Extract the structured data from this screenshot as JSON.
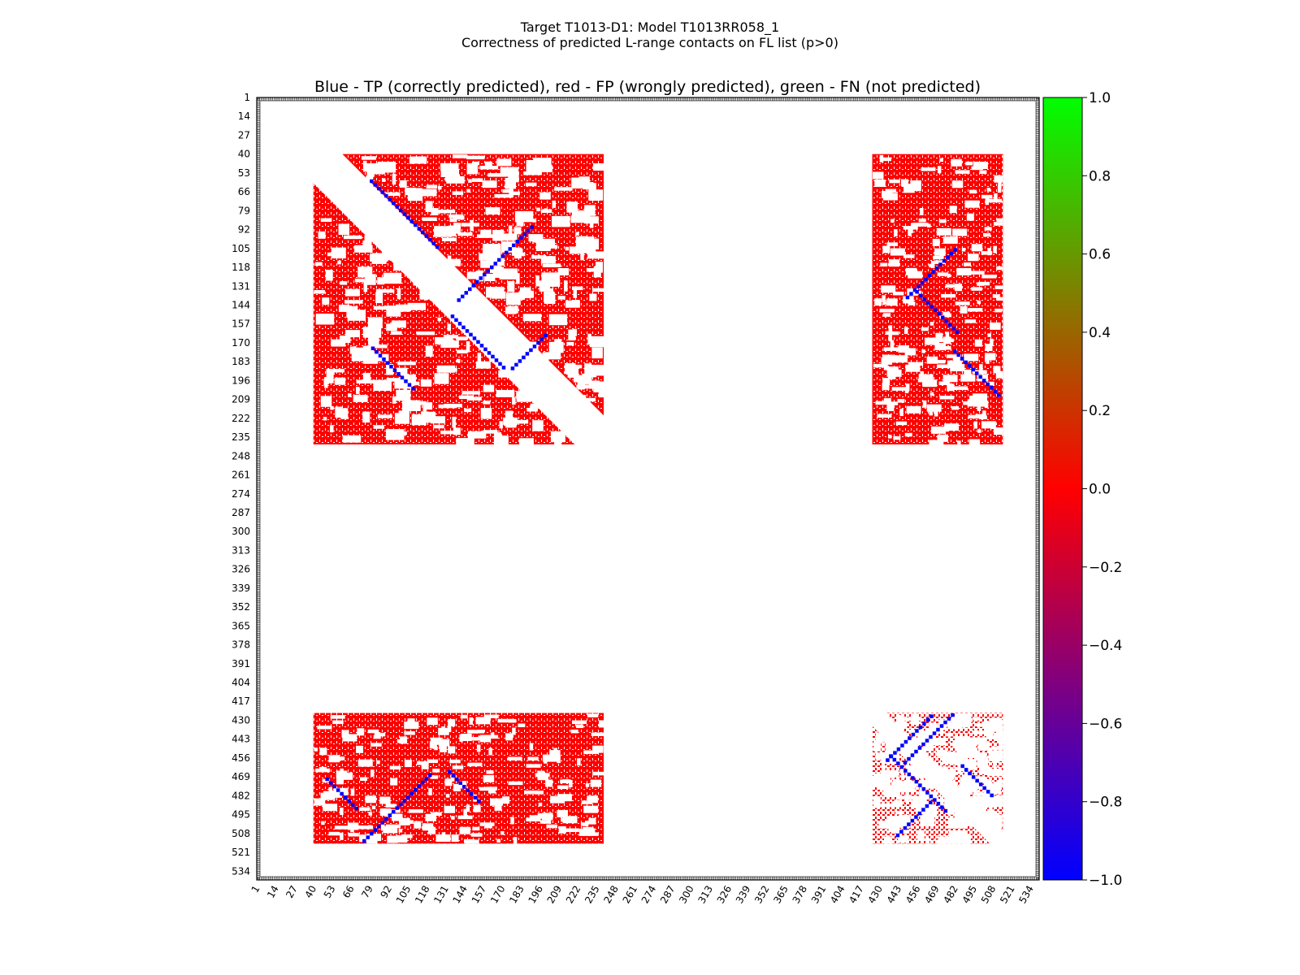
{
  "figure": {
    "suptitle_line1": "Target T1013-D1: Model T1013RR058_1",
    "suptitle_line2": "Correctness of predicted L-range contacts on FL list (p>0)",
    "axes_title": "Blue - TP (correctly predicted), red - FP (wrongly predicted), green - FN (not predicted)"
  },
  "chart_data": {
    "type": "heatmap",
    "title": "Blue - TP (correctly predicted), red - FP (wrongly predicted), green - FN (not predicted)",
    "xlabel": "",
    "ylabel": "",
    "xlim": [
      1,
      540
    ],
    "ylim": [
      540,
      1
    ],
    "x_ticks": [
      "1",
      "14",
      "27",
      "40",
      "53",
      "66",
      "79",
      "92",
      "105",
      "118",
      "131",
      "144",
      "157",
      "170",
      "183",
      "196",
      "209",
      "222",
      "235",
      "248",
      "261",
      "274",
      "287",
      "300",
      "313",
      "326",
      "339",
      "352",
      "365",
      "378",
      "391",
      "404",
      "417",
      "430",
      "443",
      "456",
      "469",
      "482",
      "495",
      "508",
      "521",
      "534"
    ],
    "y_ticks": [
      "1",
      "14",
      "27",
      "40",
      "53",
      "66",
      "79",
      "92",
      "105",
      "118",
      "131",
      "144",
      "157",
      "170",
      "183",
      "196",
      "209",
      "222",
      "235",
      "248",
      "261",
      "274",
      "287",
      "300",
      "313",
      "326",
      "339",
      "352",
      "365",
      "378",
      "391",
      "404",
      "417",
      "430",
      "443",
      "456",
      "469",
      "482",
      "495",
      "508",
      "521",
      "534"
    ],
    "colorbar": {
      "min": -1.0,
      "max": 1.0,
      "ticks": [
        "1.0",
        "0.8",
        "0.6",
        "0.4",
        "0.2",
        "0.0",
        "−0.2",
        "−0.4",
        "−0.6",
        "−0.8",
        "−1.0"
      ],
      "colors": [
        "#0000ff",
        "#ff0000",
        "#00ff00"
      ]
    },
    "blocks": [
      {
        "rows": [
          40,
          240
        ],
        "cols": [
          40,
          240
        ],
        "content": "mostly FP (red) with TP (blue) diagonal strands; empty band along main diagonal"
      },
      {
        "rows": [
          40,
          240
        ],
        "cols": [
          425,
          515
        ],
        "content": "mostly FP (red) with scattered TP (blue) strands"
      },
      {
        "rows": [
          425,
          515
        ],
        "cols": [
          40,
          240
        ],
        "content": "mostly FP (red) with scattered TP (blue) strands"
      },
      {
        "rows": [
          425,
          515
        ],
        "cols": [
          425,
          515
        ],
        "content": "sparse FP (red) with TP (blue) strands; empty band along main diagonal"
      }
    ]
  }
}
